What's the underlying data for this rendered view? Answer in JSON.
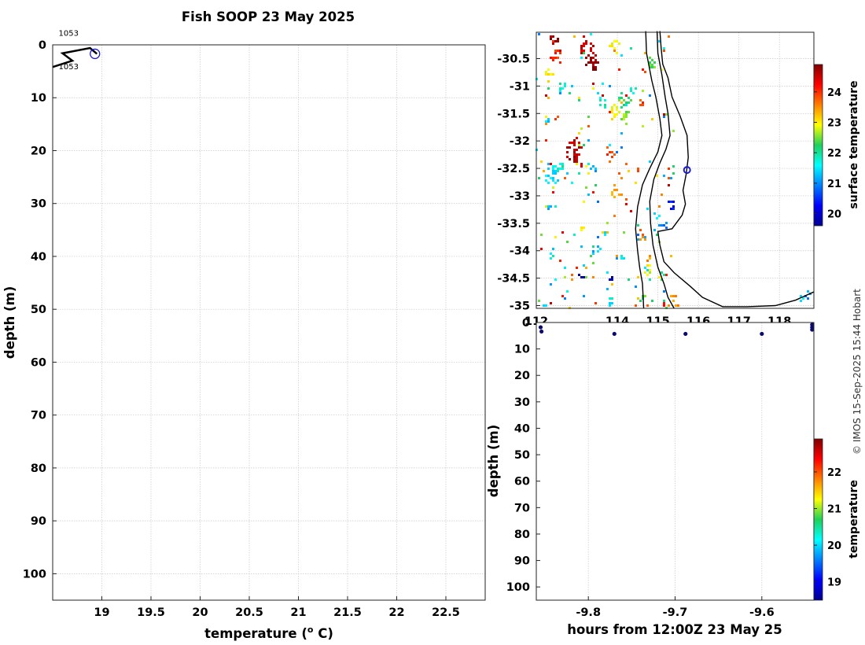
{
  "title": "Fish SOOP 23 May 2025",
  "credit": "© IMOS 15-Sep-2025 15:44 Hobart",
  "colors": {
    "profile_line": "#000000",
    "profile_marker": "#1a1ad6",
    "land_line": "#000000",
    "dot": "#0a0a70"
  },
  "chart_data": [
    {
      "id": "profile",
      "type": "line",
      "xlabel": "temperature (o C)",
      "xlabel_main": "temperature (",
      "xlabel_sup": "o",
      "xlabel_end": " C)",
      "ylabel": "depth (m)",
      "xlim": [
        18.5,
        22.9
      ],
      "ylim": [
        105,
        0
      ],
      "xticks": [
        19,
        19.5,
        20,
        20.5,
        21,
        21.5,
        22,
        22.5
      ],
      "xtick_labels": [
        "19",
        "19.5",
        "20",
        "20.5",
        "21",
        "21.5",
        "22",
        "22.5"
      ],
      "yticks": [
        0,
        10,
        20,
        30,
        40,
        50,
        60,
        70,
        80,
        90,
        100
      ],
      "ytick_labels": [
        "0",
        "10",
        "20",
        "30",
        "40",
        "50",
        "60",
        "70",
        "80",
        "90",
        "100"
      ],
      "grid": true,
      "series": [
        {
          "x": [
            18.5,
            18.7,
            18.6,
            18.88,
            18.95
          ],
          "y": [
            4.2,
            3.0,
            1.6,
            0.6,
            1.7
          ]
        }
      ],
      "marker": {
        "x": 18.93,
        "y": 1.7
      },
      "annotations": [
        {
          "text": "1053",
          "x": 18.56,
          "y": -2.3
        },
        {
          "text": "1053",
          "x": 18.56,
          "y": 4.0
        }
      ]
    },
    {
      "id": "map",
      "type": "heatmap",
      "xlim": [
        112.0,
        118.85
      ],
      "ylim": [
        -35.05,
        -30.02
      ],
      "xticks": [
        112,
        114,
        115,
        116,
        117,
        118
      ],
      "xtick_labels": [
        "112",
        "114",
        "115",
        "116",
        "117",
        "118"
      ],
      "yticks": [
        -30.5,
        -31,
        -31.5,
        -32,
        -32.5,
        -33,
        -33.5,
        -34,
        -34.5,
        -35
      ],
      "ytick_labels": [
        "-30.5",
        "-31",
        "-31.5",
        "-32",
        "-32.5",
        "-33",
        "-33.5",
        "-34",
        "-34.5",
        "-35"
      ],
      "colorbar_label": "surface temperature",
      "colorbar_ticks": [
        20,
        21,
        22,
        23,
        24
      ],
      "colorbar_tick_labels": [
        "20",
        "21",
        "22",
        "23",
        "24"
      ],
      "colorbar_range": [
        19.6,
        24.9
      ],
      "position_marker": {
        "lon": 115.72,
        "lat": -32.53
      },
      "coastline": [
        [
          115.05,
          -30.0
        ],
        [
          115.08,
          -30.3
        ],
        [
          115.12,
          -30.6
        ],
        [
          115.25,
          -30.85
        ],
        [
          115.35,
          -31.2
        ],
        [
          115.55,
          -31.55
        ],
        [
          115.72,
          -31.9
        ],
        [
          115.75,
          -32.3
        ],
        [
          115.7,
          -32.6
        ],
        [
          115.62,
          -32.9
        ],
        [
          115.68,
          -33.15
        ],
        [
          115.6,
          -33.35
        ],
        [
          115.35,
          -33.6
        ],
        [
          115.0,
          -33.65
        ],
        [
          115.05,
          -33.9
        ],
        [
          115.15,
          -34.2
        ],
        [
          115.4,
          -34.4
        ],
        [
          115.8,
          -34.65
        ],
        [
          116.1,
          -34.85
        ],
        [
          116.6,
          -35.02
        ],
        [
          117.2,
          -35.02
        ],
        [
          117.9,
          -35.0
        ],
        [
          118.4,
          -34.9
        ],
        [
          118.85,
          -34.75
        ]
      ],
      "channel_left": [
        [
          114.7,
          -30.0
        ],
        [
          114.72,
          -30.4
        ],
        [
          114.85,
          -30.9
        ],
        [
          114.95,
          -31.2
        ],
        [
          115.05,
          -31.6
        ],
        [
          115.1,
          -31.9
        ],
        [
          115.0,
          -32.2
        ],
        [
          114.8,
          -32.5
        ],
        [
          114.62,
          -32.8
        ],
        [
          114.5,
          -33.2
        ],
        [
          114.45,
          -33.6
        ],
        [
          114.5,
          -34.0
        ],
        [
          114.55,
          -34.3
        ],
        [
          114.62,
          -34.6
        ],
        [
          114.65,
          -35.05
        ]
      ],
      "channel_right": [
        [
          114.98,
          -30.0
        ],
        [
          115.0,
          -30.4
        ],
        [
          115.1,
          -30.8
        ],
        [
          115.18,
          -31.2
        ],
        [
          115.25,
          -31.5
        ],
        [
          115.3,
          -31.9
        ],
        [
          115.2,
          -32.15
        ],
        [
          115.05,
          -32.4
        ],
        [
          114.9,
          -32.7
        ],
        [
          114.8,
          -33.1
        ],
        [
          114.82,
          -33.5
        ],
        [
          114.88,
          -33.9
        ],
        [
          115.0,
          -34.3
        ],
        [
          115.15,
          -34.6
        ],
        [
          115.25,
          -34.85
        ],
        [
          115.4,
          -35.05
        ]
      ],
      "ssta_patches": [
        {
          "lon": 112.4,
          "lat": -30.1,
          "v": 24.7,
          "r": 0.12
        },
        {
          "lon": 113.2,
          "lat": -30.3,
          "v": 24.5,
          "r": 0.18
        },
        {
          "lon": 113.35,
          "lat": -30.55,
          "v": 24.8,
          "r": 0.18
        },
        {
          "lon": 112.45,
          "lat": -30.45,
          "v": 24.0,
          "r": 0.14
        },
        {
          "lon": 112.3,
          "lat": -30.75,
          "v": 22.9,
          "r": 0.1
        },
        {
          "lon": 113.9,
          "lat": -30.2,
          "v": 23.0,
          "r": 0.12
        },
        {
          "lon": 114.8,
          "lat": -30.55,
          "v": 22.4,
          "r": 0.12
        },
        {
          "lon": 112.6,
          "lat": -31.0,
          "v": 21.8,
          "r": 0.1
        },
        {
          "lon": 113.6,
          "lat": -31.25,
          "v": 21.8,
          "r": 0.12
        },
        {
          "lon": 113.9,
          "lat": -31.45,
          "v": 23.0,
          "r": 0.15
        },
        {
          "lon": 114.15,
          "lat": -31.25,
          "v": 22.3,
          "r": 0.16
        },
        {
          "lon": 114.2,
          "lat": -31.55,
          "v": 22.6,
          "r": 0.14
        },
        {
          "lon": 114.55,
          "lat": -31.3,
          "v": 23.9,
          "r": 0.08
        },
        {
          "lon": 114.35,
          "lat": -31.05,
          "v": 21.7,
          "r": 0.08
        },
        {
          "lon": 112.2,
          "lat": -31.6,
          "v": 21.3,
          "r": 0.08
        },
        {
          "lon": 112.9,
          "lat": -32.15,
          "v": 24.6,
          "r": 0.22
        },
        {
          "lon": 112.35,
          "lat": -32.6,
          "v": 21.5,
          "r": 0.2
        },
        {
          "lon": 112.55,
          "lat": -32.45,
          "v": 21.8,
          "r": 0.12
        },
        {
          "lon": 113.05,
          "lat": -32.4,
          "v": 24.6,
          "r": 0.08
        },
        {
          "lon": 113.4,
          "lat": -32.5,
          "v": 21.1,
          "r": 0.08
        },
        {
          "lon": 113.95,
          "lat": -32.9,
          "v": 23.3,
          "r": 0.14
        },
        {
          "lon": 113.8,
          "lat": -32.2,
          "v": 24.0,
          "r": 0.1
        },
        {
          "lon": 114.5,
          "lat": -32.5,
          "v": 23.9,
          "r": 0.06
        },
        {
          "lon": 112.3,
          "lat": -33.2,
          "v": 21.3,
          "r": 0.06
        },
        {
          "lon": 113.1,
          "lat": -33.55,
          "v": 23.1,
          "r": 0.06
        },
        {
          "lon": 113.7,
          "lat": -33.65,
          "v": 23.2,
          "r": 0.08
        },
        {
          "lon": 114.6,
          "lat": -33.7,
          "v": 23.6,
          "r": 0.1
        },
        {
          "lon": 114.95,
          "lat": -33.35,
          "v": 21.6,
          "r": 0.08
        },
        {
          "lon": 115.3,
          "lat": -33.15,
          "v": 20.3,
          "r": 0.1
        },
        {
          "lon": 115.15,
          "lat": -33.5,
          "v": 20.9,
          "r": 0.08
        },
        {
          "lon": 113.45,
          "lat": -34.0,
          "v": 21.3,
          "r": 0.1
        },
        {
          "lon": 112.35,
          "lat": -34.1,
          "v": 21.7,
          "r": 0.06
        },
        {
          "lon": 114.1,
          "lat": -34.1,
          "v": 21.6,
          "r": 0.06
        },
        {
          "lon": 114.7,
          "lat": -34.1,
          "v": 23.4,
          "r": 0.08
        },
        {
          "lon": 114.75,
          "lat": -34.35,
          "v": 22.8,
          "r": 0.1
        },
        {
          "lon": 115.05,
          "lat": -34.45,
          "v": 22.2,
          "r": 0.07
        },
        {
          "lon": 113.1,
          "lat": -34.45,
          "v": 19.7,
          "r": 0.05
        },
        {
          "lon": 113.8,
          "lat": -34.5,
          "v": 19.7,
          "r": 0.05
        },
        {
          "lon": 113.8,
          "lat": -34.9,
          "v": 21.6,
          "r": 0.1
        },
        {
          "lon": 114.55,
          "lat": -34.85,
          "v": 22.2,
          "r": 0.06
        },
        {
          "lon": 115.35,
          "lat": -34.9,
          "v": 23.5,
          "r": 0.14
        },
        {
          "lon": 115.15,
          "lat": -34.95,
          "v": 24.3,
          "r": 0.06
        },
        {
          "lon": 112.15,
          "lat": -34.95,
          "v": 21.2,
          "r": 0.08
        },
        {
          "lon": 118.7,
          "lat": -34.8,
          "v": 21.0,
          "r": 0.08
        },
        {
          "lon": 118.5,
          "lat": -34.85,
          "v": 21.4,
          "r": 0.06
        }
      ]
    },
    {
      "id": "section",
      "type": "scatter",
      "xlabel": "hours from 12:00Z 23 May 25",
      "ylabel": "depth (m)",
      "xlim": [
        -9.86,
        -9.54
      ],
      "ylim": [
        105,
        0
      ],
      "xticks": [
        -9.8,
        -9.7,
        -9.6
      ],
      "xtick_labels": [
        "-9.8",
        "-9.7",
        "-9.6"
      ],
      "yticks": [
        0,
        10,
        20,
        30,
        40,
        50,
        60,
        70,
        80,
        90,
        100
      ],
      "ytick_labels": [
        "0",
        "10",
        "20",
        "30",
        "40",
        "50",
        "60",
        "70",
        "80",
        "90",
        "100"
      ],
      "colorbar_label": "temperature",
      "colorbar_ticks": [
        19,
        20,
        21,
        22
      ],
      "colorbar_tick_labels": [
        "19",
        "20",
        "21",
        "22"
      ],
      "colorbar_range": [
        18.5,
        22.9
      ],
      "points": [
        {
          "x": -9.855,
          "y": 1.8,
          "v": 18.9
        },
        {
          "x": -9.854,
          "y": 3.4,
          "v": 18.9
        },
        {
          "x": -9.77,
          "y": 4.3,
          "v": 18.9
        },
        {
          "x": -9.688,
          "y": 4.3,
          "v": 18.9
        },
        {
          "x": -9.6,
          "y": 4.3,
          "v": 18.9
        },
        {
          "x": -9.542,
          "y": 0.8,
          "v": 18.9
        },
        {
          "x": -9.542,
          "y": 1.8,
          "v": 18.9
        },
        {
          "x": -9.542,
          "y": 2.7,
          "v": 18.9
        }
      ]
    }
  ]
}
